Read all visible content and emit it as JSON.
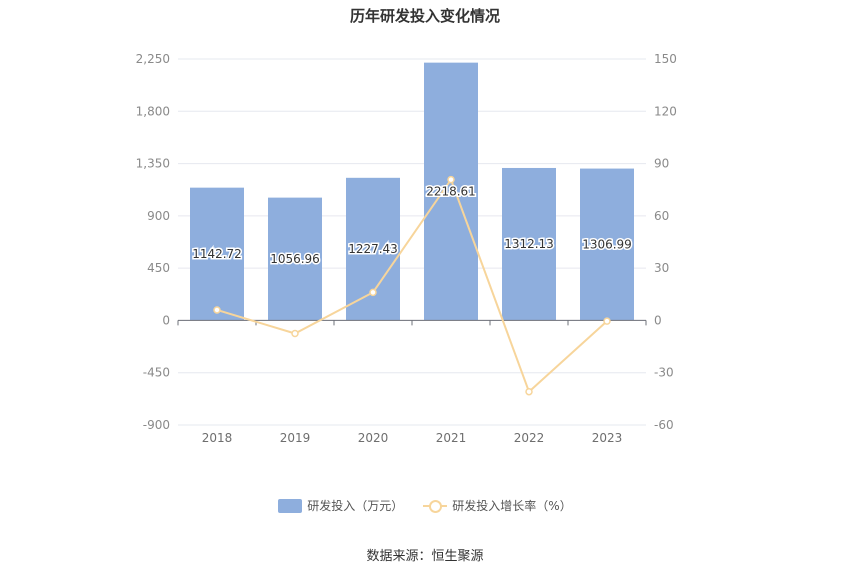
{
  "chart_data": {
    "type": "bar",
    "title": "历年研发投入变化情况",
    "categories": [
      "2018",
      "2019",
      "2020",
      "2021",
      "2022",
      "2023"
    ],
    "series": [
      {
        "name": "研发投入（万元）",
        "type": "bar",
        "axis": "left",
        "values": [
          1142.72,
          1056.96,
          1227.43,
          2218.61,
          1312.13,
          1306.99
        ],
        "data_labels": [
          "1142.72",
          "1056.96",
          "1227.43",
          "2218.61",
          "1312.13",
          "1306.99"
        ],
        "color": "#8eaedd"
      },
      {
        "name": "研发投入增长率（%）",
        "type": "line",
        "axis": "right",
        "values": [
          6.0,
          -7.5,
          16.1,
          80.8,
          -40.9,
          -0.4
        ],
        "color": "#f7d59b"
      }
    ],
    "y_left": {
      "ticks": [
        "2,250",
        "1,800",
        "1,350",
        "900",
        "450",
        "0",
        "-450",
        "-900"
      ],
      "ylim": [
        -900,
        2250
      ]
    },
    "y_right": {
      "ticks": [
        "150",
        "120",
        "90",
        "60",
        "30",
        "0",
        "-30",
        "-60"
      ],
      "ylim": [
        -60,
        150
      ]
    },
    "grid": true,
    "legend_position": "bottom"
  },
  "source": "数据来源：恒生聚源"
}
